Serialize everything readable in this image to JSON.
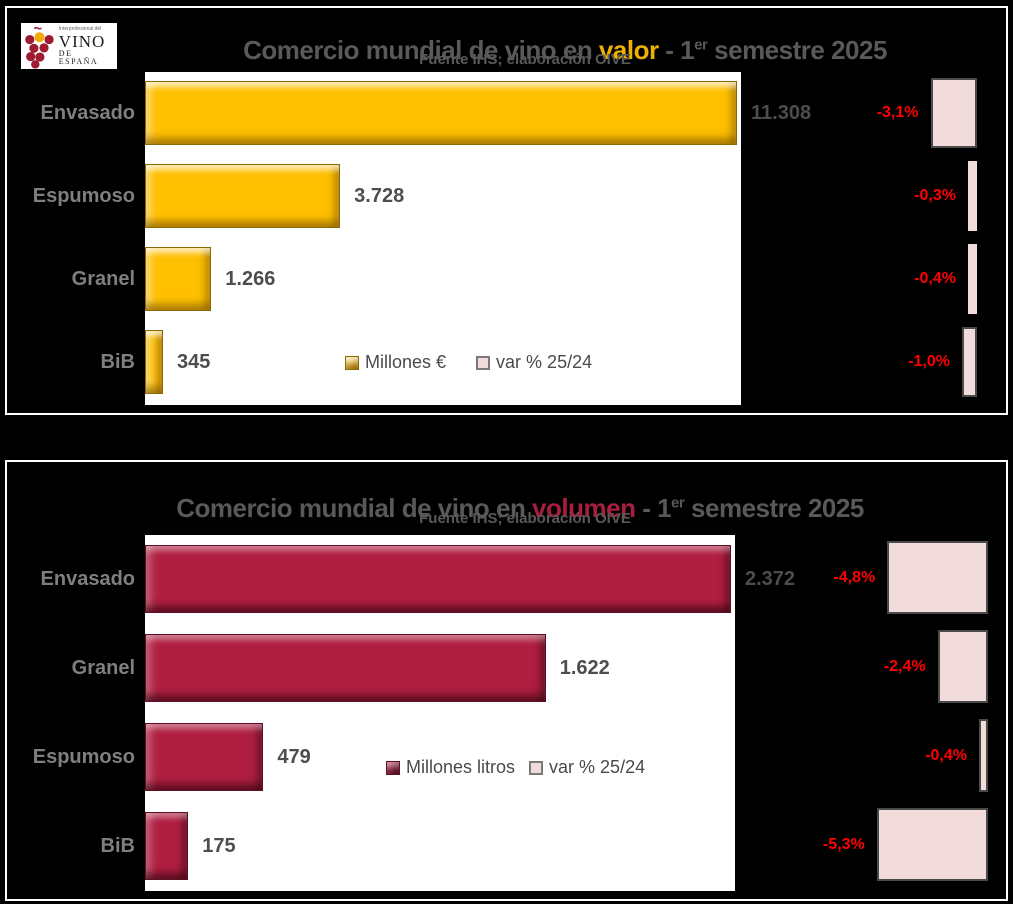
{
  "logo": {
    "line1": "Interprofesional del",
    "line2": "VINO",
    "line3": "DE ESPAÑA",
    "grape_red": "#9E1B32",
    "grape_yellow": "#F2A900"
  },
  "colors": {
    "value_bar_gold": "#FFC000",
    "volume_bar_crimson": "#B01F42",
    "variation_bar_pink": "#F2DCDB",
    "variation_text_red": "#FF0000",
    "title_gray": "#595959",
    "valor_highlight": "#F0B000",
    "volumen_highlight": "#A81E3E"
  },
  "chart_data": [
    {
      "type": "bar",
      "orientation": "horizontal",
      "title": "Comercio mundial de vino en valor - 1er semestre 2025",
      "title_parts": {
        "prefix": "Comercio mundial de vino en ",
        "highlight": "valor",
        "mid": " - 1",
        "sup": "er",
        "end": " semestre 2025"
      },
      "subtitle": "Fuente IHS; elaboración OIVE",
      "categories": [
        "Envasado",
        "Espumoso",
        "Granel",
        "BiB"
      ],
      "series": [
        {
          "name": "Millones €",
          "values": [
            11308,
            3728,
            1266,
            345
          ],
          "labels": [
            "11.308",
            "3.728",
            "1.266",
            "345"
          ],
          "color": "#FFC000"
        },
        {
          "name": "var % 25/24",
          "values": [
            -3.1,
            -0.3,
            -0.4,
            -1.0
          ],
          "labels": [
            "-3,1%",
            "-0,3%",
            "-0,4%",
            "-1,0%"
          ],
          "color": "#F2DCDB"
        }
      ],
      "xlim": [
        0,
        11308
      ],
      "grid": false,
      "legend_position": "inside-lower-right"
    },
    {
      "type": "bar",
      "orientation": "horizontal",
      "title": "Comercio mundial de vino en volumen - 1er semestre 2025",
      "title_parts": {
        "prefix": "Comercio mundial de vino en ",
        "highlight": "volumen",
        "mid": " - 1",
        "sup": "er",
        "end": " semestre 2025"
      },
      "subtitle": "Fuente IHS; elaboración OIVE",
      "categories": [
        "Envasado",
        "Granel",
        "Espumoso",
        "BiB"
      ],
      "series": [
        {
          "name": "Millones litros",
          "values": [
            2372,
            1622,
            479,
            175
          ],
          "labels": [
            "2.372",
            "1.622",
            "479",
            "175"
          ],
          "color": "#B01F42"
        },
        {
          "name": "var % 25/24",
          "values": [
            -4.8,
            -2.4,
            -0.4,
            -5.3
          ],
          "labels": [
            "-4,8%",
            "-2,4%",
            "-0,4%",
            "-5,3%"
          ],
          "color": "#F2DCDB"
        }
      ],
      "xlim": [
        0,
        2372
      ],
      "grid": false,
      "legend_position": "inside-middle-right"
    }
  ]
}
